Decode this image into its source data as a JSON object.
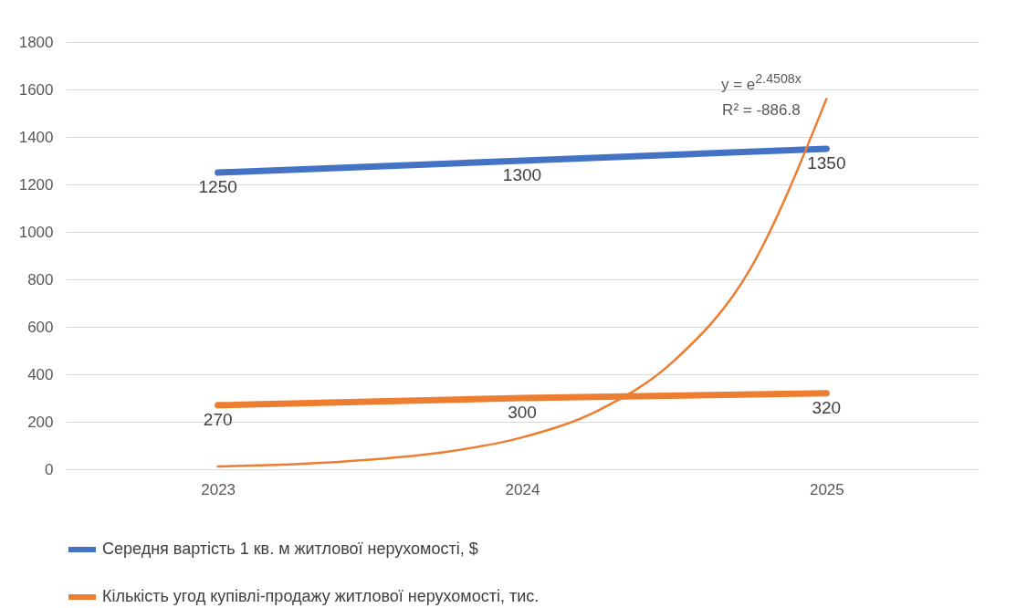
{
  "chart_data": {
    "type": "line",
    "x": [
      2023,
      2024,
      2025
    ],
    "xlim": [
      2022.5,
      2025.5
    ],
    "xticks": [
      2023,
      2024,
      2025
    ],
    "ylim": [
      0,
      1800
    ],
    "yticks": [
      0,
      200,
      400,
      600,
      800,
      1000,
      1200,
      1400,
      1600,
      1800
    ],
    "grid": "y",
    "legend": "bottom",
    "series": [
      {
        "name": "Середня вартість 1 кв. м житлової нерухомості, $",
        "color": "#4472c4",
        "values": [
          1250,
          1300,
          1350
        ],
        "value_labels": [
          "1250",
          "1300",
          "1350"
        ]
      },
      {
        "name": "Кількість угод купівлі-продажу житлової нерухомості, тис.",
        "color": "#ed7d31",
        "values": [
          270,
          300,
          320
        ],
        "value_labels": [
          "270",
          "300",
          "320"
        ]
      },
      {
        "type": "line",
        "color": "#ed7d31",
        "x": [
          2023,
          2023.25,
          2023.5,
          2023.75,
          2024,
          2024.25,
          2024.5,
          2024.75,
          2025
        ],
        "values": [
          12,
          21,
          40,
          73,
          134,
          248,
          458,
          845,
          1560
        ]
      }
    ],
    "annotations": [
      "y = e$^{2.4508x}$",
      "R² = -886.8"
    ]
  }
}
